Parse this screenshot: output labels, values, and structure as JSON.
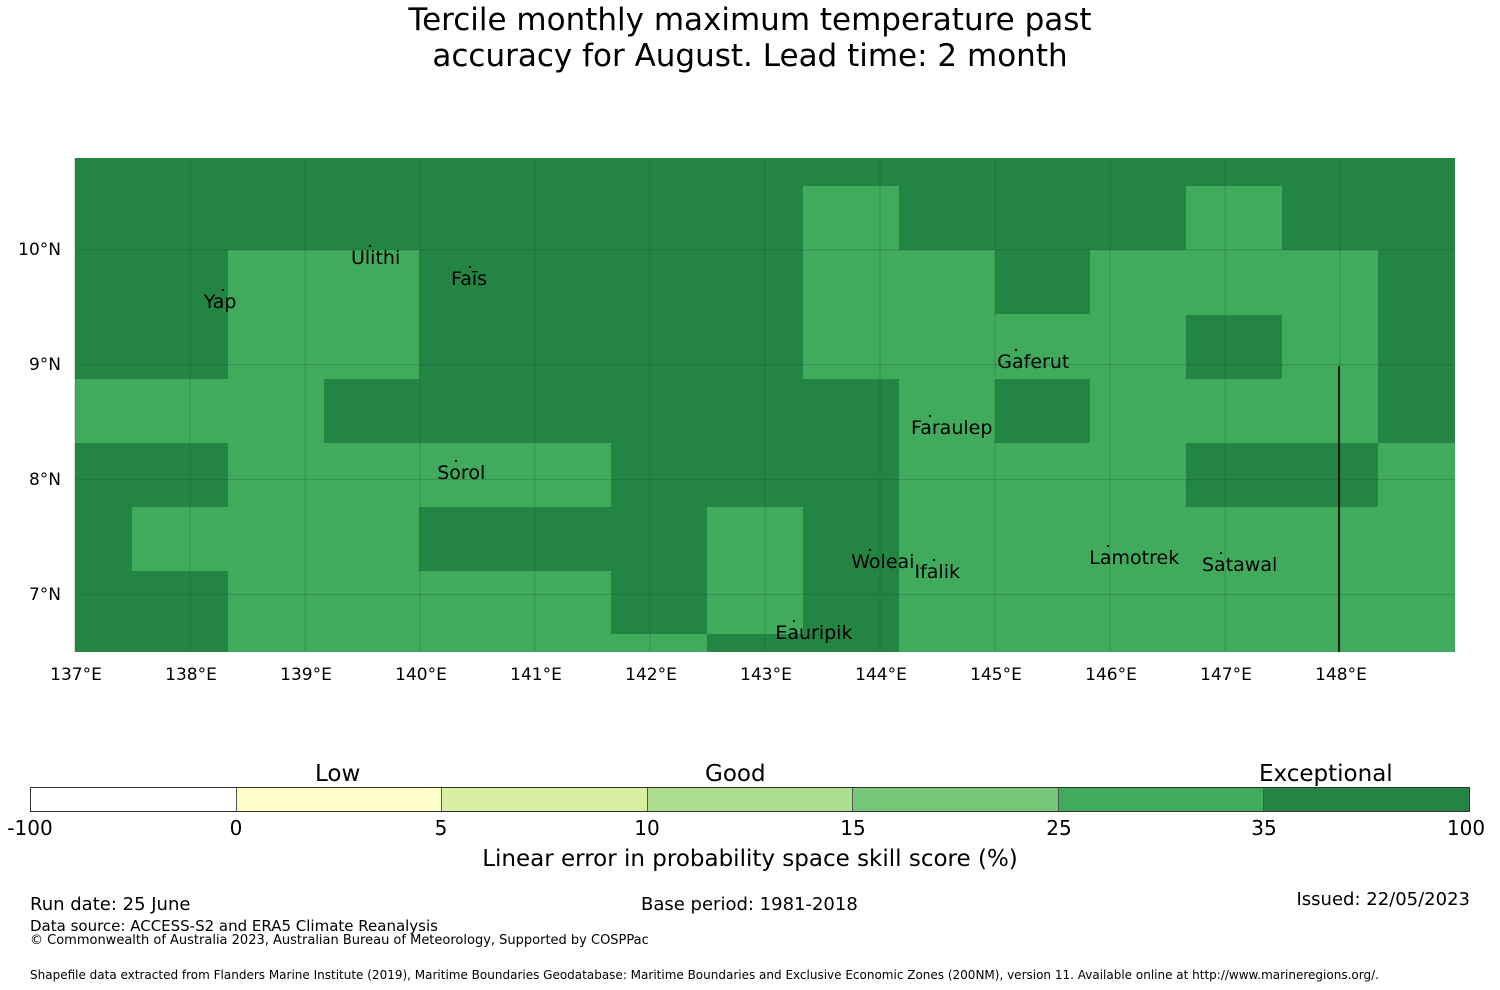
{
  "title": {
    "line1": "Tercile monthly maximum temperature past",
    "line2": "accuracy for August. Lead time: 2 month"
  },
  "map": {
    "lat_ticks": [
      "10°N",
      "9°N",
      "8°N",
      "7°N"
    ],
    "lon_ticks": [
      "137°E",
      "138°E",
      "139°E",
      "140°E",
      "141°E",
      "142°E",
      "143°E",
      "144°E",
      "145°E",
      "146°E",
      "147°E",
      "148°E"
    ],
    "colors": {
      "exceptional": "#238443",
      "high": "#41ab5d"
    },
    "places": [
      {
        "name": "Ulithi",
        "lon": 139.4,
        "lat": 9.9
      },
      {
        "name": "Faīs",
        "lon": 140.27,
        "lat": 9.72
      },
      {
        "name": "Yap",
        "lon": 138.12,
        "lat": 9.52
      },
      {
        "name": "Gaferut",
        "lon": 145.02,
        "lat": 9.0
      },
      {
        "name": "Faraulep",
        "lon": 144.27,
        "lat": 8.42
      },
      {
        "name": "Sorol",
        "lon": 140.15,
        "lat": 8.03
      },
      {
        "name": "Woleai",
        "lon": 143.75,
        "lat": 7.26
      },
      {
        "name": "Ifalik",
        "lon": 144.3,
        "lat": 7.17
      },
      {
        "name": "Lamotrek",
        "lon": 145.82,
        "lat": 7.29
      },
      {
        "name": "Satawal",
        "lon": 146.8,
        "lat": 7.23
      },
      {
        "name": "Eauripik",
        "lon": 143.09,
        "lat": 6.64
      }
    ]
  },
  "colorbar": {
    "categories": [
      "Low",
      "Good",
      "Exceptional"
    ],
    "ticks": [
      "-100",
      "0",
      "5",
      "10",
      "15",
      "25",
      "35",
      "100"
    ],
    "segment_colors": [
      "#ffffff",
      "#ffffcc",
      "#d9f0a3",
      "#addd8e",
      "#78c679",
      "#41ab5d",
      "#238443"
    ],
    "label": "Linear error in probability space skill score (%)"
  },
  "footer": {
    "run_date": "Run date: 25 June",
    "base_period": "Base period: 1981-2018",
    "issued": "Issued: 22/05/2023",
    "data_source": "Data source: ACCESS-S2 and ERA5 Climate Reanalysis",
    "copyright": "© Commonwealth of Australia 2023, Australian Bureau of Meteorology, Supported by COSPPac",
    "shapefile": "Shapefile data extracted from Flanders Marine Institute (2019), Maritime Boundaries Geodatabase: Maritime Boundaries and Exclusive Economic Zones (200NM), version 11. Available online at http://www.marineregions.org/."
  }
}
